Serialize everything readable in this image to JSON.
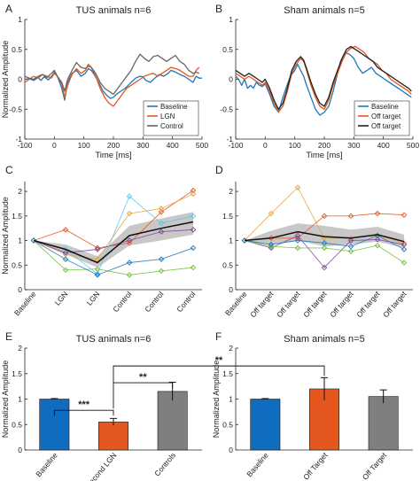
{
  "figure": {
    "panel_letters": [
      "A",
      "B",
      "C",
      "D",
      "E",
      "F"
    ]
  },
  "chart_data": [
    {
      "panel": "A",
      "type": "line",
      "title": "TUS animals n=6",
      "xlabel": "Time [ms]",
      "ylabel": "Normalized Amplitude",
      "xlim": [
        -100,
        500
      ],
      "ylim": [
        -1,
        1
      ],
      "xticks": [
        -100,
        0,
        100,
        200,
        300,
        400,
        500
      ],
      "yticks": [
        -1,
        -0.5,
        0,
        0.5,
        1
      ],
      "legend": "bottom-right",
      "series": [
        {
          "name": "Baseline",
          "color": "#1f77b4",
          "x": [
            -100,
            -85,
            -70,
            -55,
            -45,
            -35,
            -20,
            -5,
            0,
            10,
            25,
            35,
            45,
            60,
            75,
            90,
            105,
            115,
            125,
            135,
            150,
            165,
            180,
            190,
            200,
            210,
            225,
            240,
            250,
            260,
            275,
            290,
            300,
            310,
            325,
            340,
            355,
            370,
            385,
            395,
            410,
            425,
            440,
            455,
            470,
            480,
            490,
            500
          ],
          "y": [
            0,
            0.01,
            -0.02,
            0.03,
            -0.02,
            0.04,
            -0.01,
            0.08,
            0.12,
            0.05,
            -0.15,
            -0.35,
            -0.05,
            0.1,
            0.15,
            0.05,
            0.1,
            0.18,
            0.15,
            0.08,
            -0.05,
            -0.2,
            -0.28,
            -0.32,
            -0.3,
            -0.25,
            -0.2,
            -0.15,
            -0.1,
            -0.05,
            0.02,
            0.05,
            0.04,
            -0.02,
            -0.05,
            0.02,
            0.08,
            0.05,
            0.1,
            0.15,
            0.12,
            0.08,
            0.05,
            0.0,
            -0.05,
            0.05,
            0.02,
            0.02
          ]
        },
        {
          "name": "LGN",
          "color": "#e4571e",
          "x": [
            -100,
            -85,
            -70,
            -55,
            -40,
            -25,
            -10,
            0,
            10,
            25,
            35,
            45,
            60,
            75,
            90,
            105,
            115,
            125,
            140,
            155,
            170,
            185,
            200,
            215,
            230,
            245,
            260,
            275,
            290,
            305,
            320,
            335,
            350,
            365,
            380,
            395,
            410,
            425,
            440,
            455,
            470,
            480,
            490
          ],
          "y": [
            -0.05,
            0.0,
            0.05,
            0.02,
            0.08,
            0.05,
            0.02,
            0.1,
            0.05,
            -0.08,
            -0.3,
            -0.1,
            0.08,
            0.18,
            0.1,
            0.15,
            0.25,
            0.2,
            0.05,
            -0.15,
            -0.3,
            -0.4,
            -0.45,
            -0.35,
            -0.25,
            -0.15,
            -0.1,
            -0.05,
            0.0,
            0.05,
            0.08,
            0.1,
            0.05,
            0.1,
            0.15,
            0.2,
            0.18,
            0.15,
            0.1,
            0.05,
            0.05,
            0.15,
            0.2
          ]
        },
        {
          "name": "Control",
          "color": "#666666",
          "x": [
            -100,
            -85,
            -70,
            -55,
            -40,
            -25,
            -10,
            0,
            10,
            25,
            35,
            45,
            60,
            75,
            90,
            105,
            115,
            125,
            140,
            155,
            170,
            185,
            200,
            215,
            230,
            245,
            260,
            275,
            290,
            305,
            320,
            335,
            350,
            365,
            380,
            395,
            410,
            425,
            440,
            455,
            470,
            480,
            490
          ],
          "y": [
            0.05,
            0.02,
            0.0,
            0.05,
            0.08,
            0.03,
            0.1,
            0.15,
            0.05,
            -0.05,
            -0.2,
            0.0,
            0.15,
            0.28,
            0.2,
            0.18,
            0.22,
            0.2,
            0.1,
            -0.05,
            -0.15,
            -0.2,
            -0.25,
            -0.15,
            -0.05,
            0.05,
            0.15,
            0.3,
            0.42,
            0.35,
            0.3,
            0.38,
            0.4,
            0.35,
            0.3,
            0.35,
            0.4,
            0.3,
            0.25,
            0.15,
            0.1,
            0.12,
            0.1
          ]
        }
      ]
    },
    {
      "panel": "B",
      "type": "line",
      "title": "Sham animals n=5",
      "xlabel": "Time [ms]",
      "ylabel": "",
      "xlim": [
        -100,
        500
      ],
      "ylim": [
        -1,
        1
      ],
      "xticks": [
        -100,
        0,
        100,
        200,
        300,
        400,
        500
      ],
      "yticks": [
        -1,
        -0.5,
        0,
        0.5,
        1
      ],
      "legend": "bottom-right",
      "series": [
        {
          "name": "Baseline",
          "color": "#1f77b4",
          "x": [
            -100,
            -90,
            -80,
            -70,
            -60,
            -50,
            -40,
            -30,
            -20,
            -10,
            0,
            15,
            30,
            45,
            60,
            70,
            85,
            100,
            110,
            120,
            130,
            140,
            155,
            170,
            185,
            200,
            215,
            230,
            245,
            255,
            270,
            285,
            300,
            315,
            330,
            345,
            360,
            375,
            390,
            405,
            420,
            435,
            450,
            465,
            480,
            495
          ],
          "y": [
            0.05,
            0.0,
            -0.1,
            0.0,
            -0.15,
            -0.1,
            -0.15,
            -0.05,
            -0.1,
            -0.12,
            -0.08,
            -0.25,
            -0.45,
            -0.55,
            -0.3,
            -0.15,
            0.05,
            0.15,
            0.25,
            0.15,
            0.05,
            -0.1,
            -0.3,
            -0.5,
            -0.6,
            -0.55,
            -0.45,
            -0.2,
            0.1,
            0.3,
            0.45,
            0.42,
            0.35,
            0.2,
            0.1,
            0.15,
            0.2,
            0.1,
            0.05,
            0.0,
            -0.05,
            -0.1,
            -0.15,
            -0.2,
            -0.25,
            -0.3
          ]
        },
        {
          "name": "Off target",
          "color": "#e4571e",
          "x": [
            -100,
            -85,
            -70,
            -55,
            -40,
            -25,
            -10,
            0,
            15,
            30,
            45,
            60,
            75,
            90,
            105,
            120,
            130,
            140,
            155,
            170,
            185,
            200,
            215,
            230,
            245,
            260,
            275,
            290,
            305,
            320,
            335,
            350,
            365,
            380,
            395,
            410,
            425,
            440,
            455,
            470,
            485,
            495
          ],
          "y": [
            0.1,
            0.05,
            0.0,
            0.05,
            0.0,
            -0.05,
            -0.1,
            -0.05,
            -0.2,
            -0.4,
            -0.55,
            -0.45,
            -0.2,
            0.1,
            0.25,
            0.35,
            0.3,
            0.15,
            -0.1,
            -0.3,
            -0.45,
            -0.5,
            -0.35,
            -0.1,
            0.1,
            0.3,
            0.45,
            0.52,
            0.55,
            0.5,
            0.45,
            0.35,
            0.3,
            0.25,
            0.15,
            0.1,
            0.0,
            -0.05,
            -0.1,
            -0.15,
            -0.2,
            -0.25
          ]
        },
        {
          "name": "Off target",
          "color": "#222222",
          "x": [
            -100,
            -85,
            -70,
            -55,
            -40,
            -25,
            -10,
            0,
            15,
            30,
            45,
            60,
            75,
            90,
            105,
            120,
            130,
            140,
            155,
            170,
            185,
            200,
            215,
            230,
            245,
            260,
            275,
            290,
            305,
            320,
            335,
            350,
            365,
            380,
            395,
            410,
            425,
            440,
            455,
            470,
            485,
            495
          ],
          "y": [
            0.15,
            0.1,
            0.05,
            0.1,
            0.05,
            0.0,
            -0.05,
            0.0,
            -0.15,
            -0.35,
            -0.5,
            -0.4,
            -0.15,
            0.15,
            0.3,
            0.38,
            0.32,
            0.18,
            -0.05,
            -0.25,
            -0.4,
            -0.45,
            -0.3,
            -0.05,
            0.15,
            0.35,
            0.5,
            0.55,
            0.5,
            0.45,
            0.4,
            0.35,
            0.3,
            0.2,
            0.15,
            0.1,
            0.05,
            0.0,
            -0.05,
            -0.1,
            -0.15,
            -0.2
          ]
        }
      ]
    },
    {
      "panel": "C",
      "type": "line",
      "title": "",
      "ylabel": "Normalized Amplitude",
      "categories": [
        "Baseline",
        "LGN",
        "LGN",
        "Control",
        "Control",
        "Control"
      ],
      "ylim": [
        0,
        2.2
      ],
      "yticks": [
        0,
        0.5,
        1,
        1.5,
        2
      ],
      "mean": [
        1.0,
        0.82,
        0.55,
        1.1,
        1.25,
        1.38
      ],
      "band_low": [
        1.0,
        0.72,
        0.45,
        0.9,
        1.0,
        1.12
      ],
      "band_high": [
        1.0,
        0.92,
        0.68,
        1.3,
        1.45,
        1.58
      ],
      "series": [
        {
          "color": "#e4571e",
          "values": [
            1.0,
            1.22,
            0.85,
            0.95,
            1.58,
            2.02
          ]
        },
        {
          "color": "#e8a33d",
          "values": [
            1.0,
            0.72,
            0.62,
            1.55,
            1.65,
            1.95
          ]
        },
        {
          "color": "#7b3fa0",
          "values": [
            1.0,
            0.75,
            0.82,
            1.0,
            1.18,
            1.22
          ]
        },
        {
          "color": "#6fbf3a",
          "values": [
            1.0,
            0.4,
            0.42,
            0.3,
            0.38,
            0.45
          ]
        },
        {
          "color": "#5bc8e8",
          "values": [
            1.0,
            0.82,
            0.32,
            1.9,
            1.35,
            1.5
          ]
        },
        {
          "color": "#1f77b4",
          "values": [
            1.0,
            0.62,
            0.3,
            0.55,
            0.62,
            0.85
          ]
        }
      ]
    },
    {
      "panel": "D",
      "type": "line",
      "title": "",
      "ylabel": "",
      "categories": [
        "Baseline",
        "Off target",
        "Off target",
        "Off target",
        "Off target",
        "Off target",
        "Off target"
      ],
      "ylim": [
        0,
        2.2
      ],
      "yticks": [
        0,
        0.5,
        1,
        1.5,
        2
      ],
      "mean": [
        1.0,
        1.05,
        1.18,
        1.08,
        1.05,
        1.12,
        0.98
      ],
      "band_low": [
        1.0,
        0.92,
        1.0,
        0.88,
        0.92,
        0.98,
        0.85
      ],
      "band_high": [
        1.0,
        1.2,
        1.35,
        1.3,
        1.22,
        1.28,
        1.12
      ],
      "series": [
        {
          "color": "#e8a33d",
          "values": [
            1.0,
            1.55,
            2.08,
            1.05,
            1.05,
            1.1,
            0.95
          ]
        },
        {
          "color": "#e4571e",
          "values": [
            1.0,
            1.05,
            1.05,
            1.5,
            1.5,
            1.55,
            1.52
          ]
        },
        {
          "color": "#7b3fa0",
          "values": [
            1.0,
            0.85,
            1.1,
            0.45,
            1.0,
            1.02,
            0.92
          ]
        },
        {
          "color": "#6fbf3a",
          "values": [
            1.0,
            0.88,
            0.85,
            0.85,
            0.78,
            0.9,
            0.55
          ]
        },
        {
          "color": "#1f77b4",
          "values": [
            1.0,
            0.92,
            1.0,
            0.95,
            0.88,
            1.1,
            0.82
          ]
        }
      ]
    },
    {
      "panel": "E",
      "type": "bar",
      "title": "TUS animals n=6",
      "ylabel": "Normalized Amplitude",
      "categories": [
        "Baseline",
        "Second LGN",
        "Controls"
      ],
      "values": [
        1.0,
        0.55,
        1.15
      ],
      "errors": [
        0.01,
        0.07,
        0.18
      ],
      "colors": [
        "#0f6cc0",
        "#e4571e",
        "#7f7f7f"
      ],
      "ylim": [
        0,
        2
      ],
      "yticks": [
        0,
        0.5,
        1,
        1.5,
        2
      ],
      "annotations": [
        "***",
        "**",
        "**"
      ]
    },
    {
      "panel": "F",
      "type": "bar",
      "title": "Sham animals n=5",
      "ylabel": "Normalized Amplitude",
      "categories": [
        "Baseline",
        "Off Target",
        "Off Target"
      ],
      "values": [
        1.0,
        1.2,
        1.05
      ],
      "errors": [
        0.01,
        0.22,
        0.13
      ],
      "colors": [
        "#0f6cc0",
        "#e4571e",
        "#7f7f7f"
      ],
      "ylim": [
        0,
        2
      ],
      "yticks": [
        0,
        0.5,
        1,
        1.5,
        2
      ]
    }
  ]
}
